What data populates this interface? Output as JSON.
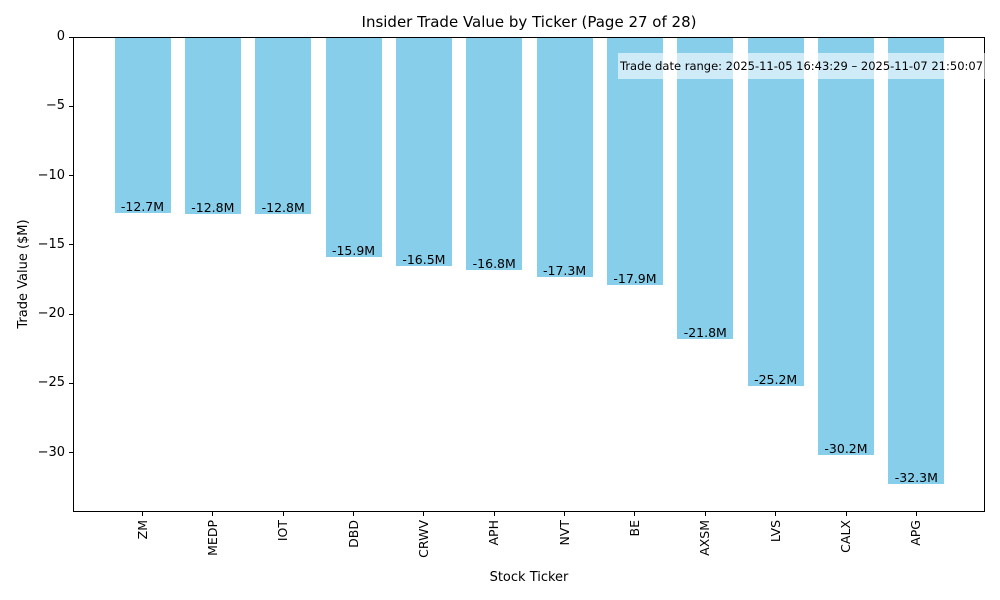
{
  "chart_data": {
    "type": "bar",
    "title": "Insider Trade Value by Ticker (Page 27 of 28)",
    "xlabel": "Stock Ticker",
    "ylabel": "Trade Value ($M)",
    "categories": [
      "ZM",
      "MEDP",
      "IOT",
      "DBD",
      "CRWV",
      "APH",
      "NVT",
      "BE",
      "AXSM",
      "LVS",
      "CALX",
      "APG"
    ],
    "values": [
      -12.7,
      -12.8,
      -12.8,
      -15.9,
      -16.5,
      -16.8,
      -17.3,
      -17.9,
      -21.8,
      -25.2,
      -30.2,
      -32.3
    ],
    "bar_labels": [
      "-12.7M",
      "-12.8M",
      "-12.8M",
      "-15.9M",
      "-16.5M",
      "-16.8M",
      "-17.3M",
      "-17.9M",
      "-21.8M",
      "-25.2M",
      "-30.2M",
      "-32.3M"
    ],
    "y_ticks": [
      0,
      -5,
      -10,
      -15,
      -20,
      -25,
      -30
    ],
    "y_tick_labels": [
      "0",
      "−5",
      "−10",
      "−15",
      "−20",
      "−25",
      "−30"
    ],
    "ylim": [
      -34.3,
      0
    ],
    "grid": false,
    "legend": "none",
    "bar_color": "#87CEEB",
    "annotation": "Trade date range: 2025-11-05 16:43:29 – 2025-11-07 21:50:07"
  }
}
